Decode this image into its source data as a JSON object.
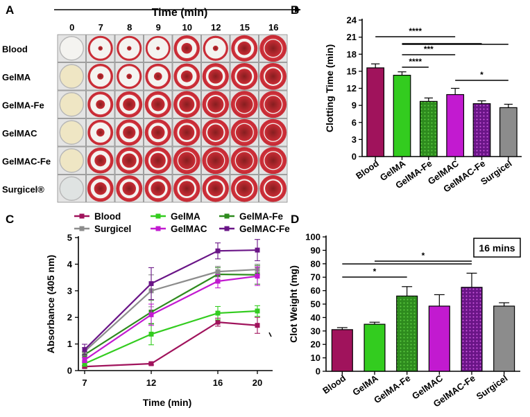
{
  "panel_labels": {
    "a": "A",
    "b": "B",
    "c": "C",
    "d": "D"
  },
  "panel_a": {
    "time_title": "Time (min)",
    "times": [
      "0",
      "7",
      "8",
      "9",
      "10",
      "12",
      "15",
      "16"
    ],
    "rows": [
      "Blood",
      "GelMA",
      "GelMA-Fe",
      "GelMAC",
      "GelMAC-Fe",
      "Surgicel®"
    ],
    "clot_fraction": [
      [
        0.0,
        0.25,
        0.25,
        0.2,
        0.6,
        0.3,
        0.75,
        0.95
      ],
      [
        0.0,
        0.35,
        0.3,
        0.45,
        0.65,
        0.8,
        0.85,
        0.9
      ],
      [
        0.0,
        0.5,
        0.7,
        0.75,
        0.85,
        0.9,
        0.95,
        0.95
      ],
      [
        0.0,
        0.45,
        0.7,
        0.75,
        0.85,
        0.9,
        0.95,
        0.95
      ],
      [
        0.0,
        0.65,
        0.8,
        0.85,
        0.95,
        0.95,
        0.95,
        0.95
      ],
      [
        0.0,
        0.7,
        0.75,
        0.8,
        0.85,
        0.85,
        0.9,
        0.9
      ]
    ]
  },
  "colors": {
    "Blood": "#a0135c",
    "GelMA": "#33cc1f",
    "GelMA-Fe": "#2e8b1e",
    "GelMAC": "#c21ad0",
    "GelMAC-Fe": "#6a1587",
    "Surgicel": "#8c8c8c"
  },
  "chart_data": [
    {
      "type": "bar",
      "panel": "B",
      "ylabel": "Clotting Time (min)",
      "categories": [
        "Blood",
        "GelMA",
        "GelMA-Fe",
        "GelMAC",
        "GelMAC-Fe",
        "Surgicel"
      ],
      "values": [
        15.6,
        14.3,
        9.7,
        10.9,
        9.3,
        8.6
      ],
      "errors": [
        0.7,
        0.6,
        0.6,
        1.1,
        0.5,
        0.6
      ],
      "patterned": [
        false,
        false,
        true,
        false,
        true,
        false
      ],
      "ylim": [
        0,
        24
      ],
      "yticks": [
        "0",
        "3",
        "6",
        "9",
        "12",
        "15",
        "18",
        "21",
        "24"
      ],
      "significance": [
        {
          "from": 0,
          "to": 3,
          "label": "****"
        },
        {
          "from": 1,
          "to": 4,
          "label": ""
        },
        {
          "from": 1,
          "to": 5,
          "label": ""
        },
        {
          "from": 1,
          "to": 3,
          "label": "***"
        },
        {
          "from": 1,
          "to": 2,
          "label": "****"
        },
        {
          "from": 3,
          "to": 5,
          "label": "*"
        }
      ]
    },
    {
      "type": "line",
      "panel": "C",
      "xlabel": "Time (min)",
      "ylabel": "Absorbance (405 nm)",
      "x": [
        7,
        12,
        16,
        20
      ],
      "xticks": [
        "7",
        "12",
        "16",
        "20"
      ],
      "ylim": [
        0,
        5
      ],
      "yticks": [
        "0",
        "1",
        "2",
        "3",
        "4",
        "5"
      ],
      "legend_position": "top",
      "series": [
        {
          "name": "Blood",
          "values": [
            0.15,
            0.26,
            1.82,
            1.7
          ],
          "errors": [
            0.05,
            0.05,
            0.15,
            0.3
          ]
        },
        {
          "name": "GelMA",
          "values": [
            0.26,
            1.37,
            2.16,
            2.24
          ],
          "errors": [
            0.1,
            0.4,
            0.25,
            0.2
          ]
        },
        {
          "name": "GelMA-Fe",
          "values": [
            0.6,
            2.2,
            3.62,
            3.6
          ],
          "errors": [
            0.1,
            0.45,
            0.25,
            0.35
          ]
        },
        {
          "name": "Surgicel",
          "values": [
            0.72,
            3.0,
            3.72,
            3.8
          ],
          "errors": [
            0.15,
            0.6,
            0.2,
            0.2
          ]
        },
        {
          "name": "GelMAC",
          "values": [
            0.4,
            2.1,
            3.36,
            3.55
          ],
          "errors": [
            0.1,
            0.4,
            0.25,
            0.35
          ]
        },
        {
          "name": "GelMAC-Fe",
          "values": [
            0.79,
            3.27,
            4.5,
            4.53
          ],
          "errors": [
            0.2,
            0.6,
            0.3,
            0.4
          ]
        }
      ]
    },
    {
      "type": "bar",
      "panel": "D",
      "ylabel": "Clot Weight (mg)",
      "annotation": "16 mins",
      "categories": [
        "Blood",
        "GelMA",
        "GelMA-Fe",
        "GelMAC",
        "GelMAC-Fe",
        "Surgicel"
      ],
      "values": [
        31,
        35,
        56,
        48.5,
        62.5,
        48.5
      ],
      "errors": [
        1.5,
        1.5,
        7,
        8.5,
        10.5,
        2.5
      ],
      "patterned": [
        false,
        false,
        true,
        false,
        true,
        false
      ],
      "ylim": [
        0,
        100
      ],
      "yticks": [
        "0",
        "10",
        "20",
        "30",
        "40",
        "50",
        "60",
        "70",
        "80",
        "90",
        "100"
      ],
      "significance": [
        {
          "from": 0,
          "to": 4,
          "label": ""
        },
        {
          "from": 1,
          "to": 4,
          "label": "*"
        },
        {
          "from": 0,
          "to": 2,
          "label": "*"
        }
      ]
    }
  ]
}
